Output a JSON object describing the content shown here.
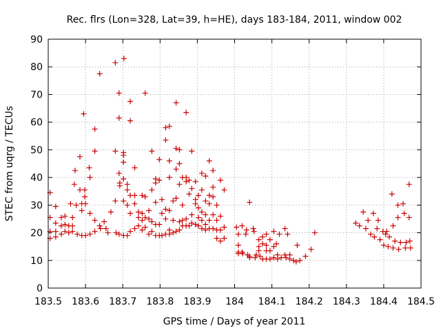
{
  "chart_data": {
    "type": "scatter",
    "title": "Rec. flrs (Lon=328, Lat=39, h=HE), days 183-184, 2011, window 002",
    "xlabel": "GPS time / Days of year 2011",
    "ylabel": "STEC from uqrg / TECUs",
    "xlim": [
      183.5,
      184.5
    ],
    "ylim": [
      0,
      90
    ],
    "x_ticks": [
      "183.5",
      "183.6",
      "183.7",
      "183.8",
      "183.9",
      "184",
      "184.1",
      "184.2",
      "184.3",
      "184.4",
      "184.5"
    ],
    "y_ticks": [
      "0",
      "10",
      "20",
      "30",
      "40",
      "50",
      "60",
      "70",
      "80",
      "90"
    ],
    "grid": true,
    "marker": "+",
    "colors": {
      "points": "#cc0000",
      "grid": "#a0a0a0",
      "axes": "#000000"
    },
    "series": [
      {
        "points": [
          [
            183.505,
            34.5
          ],
          [
            183.505,
            25.5
          ],
          [
            183.505,
            20.5
          ],
          [
            183.505,
            18.0
          ],
          [
            183.52,
            29.5
          ],
          [
            183.52,
            23.5
          ],
          [
            183.52,
            20.5
          ],
          [
            183.52,
            18.5
          ],
          [
            183.535,
            25.5
          ],
          [
            183.535,
            22.5
          ],
          [
            183.535,
            19.5
          ],
          [
            183.545,
            26.0
          ],
          [
            183.545,
            23.0
          ],
          [
            183.545,
            20.5
          ],
          [
            183.555,
            22.5
          ],
          [
            183.555,
            20.0
          ],
          [
            183.56,
            30.5
          ],
          [
            183.565,
            25.5
          ],
          [
            183.565,
            22.5
          ],
          [
            183.565,
            20.5
          ],
          [
            183.57,
            37.5
          ],
          [
            183.572,
            42.5
          ],
          [
            183.575,
            30.0
          ],
          [
            183.578,
            19.5
          ],
          [
            183.585,
            47.5
          ],
          [
            183.585,
            35.5
          ],
          [
            183.59,
            30.5
          ],
          [
            183.59,
            28.0
          ],
          [
            183.59,
            19.0
          ],
          [
            183.595,
            63.0
          ],
          [
            183.598,
            35.5
          ],
          [
            183.598,
            33.0
          ],
          [
            183.6,
            30.5
          ],
          [
            183.6,
            19.0
          ],
          [
            183.61,
            43.5
          ],
          [
            183.612,
            40.0
          ],
          [
            183.612,
            27.0
          ],
          [
            183.612,
            19.5
          ],
          [
            183.625,
            57.5
          ],
          [
            183.625,
            49.5
          ],
          [
            183.625,
            24.5
          ],
          [
            183.625,
            20.5
          ],
          [
            183.638,
            77.5
          ],
          [
            183.638,
            22.5
          ],
          [
            183.64,
            21.5
          ],
          [
            183.65,
            24.0
          ],
          [
            183.655,
            21.5
          ],
          [
            183.66,
            20.0
          ],
          [
            183.668,
            27.5
          ],
          [
            183.68,
            81.5
          ],
          [
            183.68,
            49.5
          ],
          [
            183.68,
            31.5
          ],
          [
            183.682,
            20.0
          ],
          [
            183.69,
            70.5
          ],
          [
            183.69,
            61.5
          ],
          [
            183.69,
            41.5
          ],
          [
            183.692,
            38.0
          ],
          [
            183.692,
            37.0
          ],
          [
            183.69,
            19.5
          ],
          [
            183.703,
            83.0
          ],
          [
            183.702,
            49.0
          ],
          [
            183.702,
            48.0
          ],
          [
            183.702,
            45.5
          ],
          [
            183.702,
            39.5
          ],
          [
            183.702,
            31.5
          ],
          [
            183.702,
            19.0
          ],
          [
            183.712,
            37.5
          ],
          [
            183.712,
            35.5
          ],
          [
            183.712,
            30.0
          ],
          [
            183.712,
            19.0
          ],
          [
            183.72,
            67.5
          ],
          [
            183.72,
            60.5
          ],
          [
            183.72,
            33.5
          ],
          [
            183.72,
            27.0
          ],
          [
            183.72,
            20.5
          ],
          [
            183.732,
            43.5
          ],
          [
            183.732,
            33.5
          ],
          [
            183.732,
            30.5
          ],
          [
            183.732,
            21.5
          ],
          [
            183.742,
            27.5
          ],
          [
            183.742,
            25.5
          ],
          [
            183.742,
            22.5
          ],
          [
            183.752,
            33.5
          ],
          [
            183.752,
            27.0
          ],
          [
            183.752,
            24.5
          ],
          [
            183.752,
            21.0
          ],
          [
            183.76,
            70.5
          ],
          [
            183.76,
            33.0
          ],
          [
            183.76,
            25.5
          ],
          [
            183.76,
            22.0
          ],
          [
            183.77,
            28.0
          ],
          [
            183.77,
            25.0
          ],
          [
            183.77,
            19.5
          ],
          [
            183.778,
            49.5
          ],
          [
            183.778,
            35.5
          ],
          [
            183.778,
            24.0
          ],
          [
            183.778,
            20.5
          ],
          [
            183.788,
            39.5
          ],
          [
            183.788,
            38.0
          ],
          [
            183.788,
            31.0
          ],
          [
            183.788,
            23.0
          ],
          [
            183.788,
            19.0
          ],
          [
            183.798,
            46.5
          ],
          [
            183.798,
            39.0
          ],
          [
            183.798,
            23.0
          ],
          [
            183.798,
            19.0
          ],
          [
            183.805,
            32.0
          ],
          [
            183.805,
            27.0
          ],
          [
            183.805,
            19.0
          ],
          [
            183.815,
            58.0
          ],
          [
            183.815,
            53.5
          ],
          [
            183.815,
            28.5
          ],
          [
            183.815,
            25.0
          ],
          [
            183.815,
            19.5
          ],
          [
            183.825,
            58.5
          ],
          [
            183.825,
            46.0
          ],
          [
            183.825,
            40.0
          ],
          [
            183.825,
            28.0
          ],
          [
            183.825,
            21.0
          ],
          [
            183.825,
            19.5
          ],
          [
            183.835,
            31.5
          ],
          [
            183.835,
            24.5
          ],
          [
            183.835,
            20.0
          ],
          [
            183.843,
            67.0
          ],
          [
            183.843,
            50.5
          ],
          [
            183.843,
            43.0
          ],
          [
            183.843,
            32.5
          ],
          [
            183.843,
            20.5
          ],
          [
            183.852,
            50.0
          ],
          [
            183.852,
            45.0
          ],
          [
            183.852,
            37.5
          ],
          [
            183.852,
            24.0
          ],
          [
            183.852,
            21.0
          ],
          [
            183.86,
            40.0
          ],
          [
            183.86,
            30.0
          ],
          [
            183.86,
            24.5
          ],
          [
            183.86,
            22.5
          ],
          [
            183.87,
            63.5
          ],
          [
            183.87,
            40.0
          ],
          [
            183.87,
            38.5
          ],
          [
            183.87,
            25.0
          ],
          [
            183.87,
            22.5
          ],
          [
            183.878,
            39.0
          ],
          [
            183.878,
            34.0
          ],
          [
            183.878,
            22.5
          ],
          [
            183.885,
            49.5
          ],
          [
            183.885,
            36.0
          ],
          [
            183.885,
            26.5
          ],
          [
            183.885,
            23.5
          ],
          [
            183.895,
            38.5
          ],
          [
            183.895,
            32.0
          ],
          [
            183.895,
            30.5
          ],
          [
            183.895,
            23.0
          ],
          [
            183.903,
            33.5
          ],
          [
            183.903,
            29.0
          ],
          [
            183.903,
            25.5
          ],
          [
            183.903,
            22.5
          ],
          [
            183.912,
            41.5
          ],
          [
            183.912,
            35.5
          ],
          [
            183.912,
            27.5
          ],
          [
            183.912,
            24.5
          ],
          [
            183.912,
            21.5
          ],
          [
            183.922,
            40.5
          ],
          [
            183.922,
            31.5
          ],
          [
            183.922,
            26.5
          ],
          [
            183.922,
            23.0
          ],
          [
            183.922,
            21.0
          ],
          [
            183.932,
            46.0
          ],
          [
            183.932,
            33.5
          ],
          [
            183.932,
            30.5
          ],
          [
            183.932,
            24.5
          ],
          [
            183.932,
            21.5
          ],
          [
            183.942,
            42.5
          ],
          [
            183.942,
            36.5
          ],
          [
            183.942,
            33.0
          ],
          [
            183.942,
            26.5
          ],
          [
            183.942,
            21.5
          ],
          [
            183.952,
            30.0
          ],
          [
            183.952,
            24.5
          ],
          [
            183.952,
            21.0
          ],
          [
            183.952,
            18.0
          ],
          [
            183.962,
            39.0
          ],
          [
            183.962,
            26.0
          ],
          [
            183.962,
            21.0
          ],
          [
            183.962,
            17.0
          ],
          [
            183.972,
            35.5
          ],
          [
            183.972,
            22.0
          ],
          [
            183.972,
            18.0
          ],
          [
            184.005,
            22.0
          ],
          [
            184.01,
            19.5
          ],
          [
            184.01,
            15.5
          ],
          [
            184.01,
            13.0
          ],
          [
            184.01,
            12.5
          ],
          [
            184.02,
            22.5
          ],
          [
            184.02,
            13.0
          ],
          [
            184.022,
            12.5
          ],
          [
            184.03,
            19.5
          ],
          [
            184.032,
            21.0
          ],
          [
            184.035,
            12.0
          ],
          [
            184.04,
            31.0
          ],
          [
            184.04,
            11.5
          ],
          [
            184.04,
            11.0
          ],
          [
            184.05,
            21.5
          ],
          [
            184.052,
            20.5
          ],
          [
            184.055,
            11.0
          ],
          [
            184.058,
            12.0
          ],
          [
            184.065,
            17.5
          ],
          [
            184.065,
            15.0
          ],
          [
            184.065,
            13.5
          ],
          [
            184.068,
            11.5
          ],
          [
            184.075,
            18.5
          ],
          [
            184.075,
            16.0
          ],
          [
            184.075,
            10.5
          ],
          [
            184.085,
            19.5
          ],
          [
            184.085,
            15.5
          ],
          [
            184.085,
            13.5
          ],
          [
            184.085,
            10.5
          ],
          [
            184.095,
            17.5
          ],
          [
            184.095,
            13.5
          ],
          [
            184.095,
            10.5
          ],
          [
            184.105,
            20.5
          ],
          [
            184.105,
            15.0
          ],
          [
            184.105,
            11.0
          ],
          [
            184.112,
            16.0
          ],
          [
            184.115,
            12.0
          ],
          [
            184.115,
            10.5
          ],
          [
            184.12,
            19.5
          ],
          [
            184.125,
            11.0
          ],
          [
            184.135,
            21.5
          ],
          [
            184.135,
            12.0
          ],
          [
            184.138,
            11.0
          ],
          [
            184.142,
            19.5
          ],
          [
            184.148,
            12.0
          ],
          [
            184.148,
            10.5
          ],
          [
            184.158,
            10.0
          ],
          [
            184.165,
            9.5
          ],
          [
            184.168,
            15.5
          ],
          [
            184.175,
            10.0
          ],
          [
            184.19,
            11.5
          ],
          [
            184.205,
            14.0
          ],
          [
            184.215,
            20.0
          ],
          [
            184.325,
            23.5
          ],
          [
            184.335,
            22.5
          ],
          [
            184.345,
            27.5
          ],
          [
            184.352,
            21.5
          ],
          [
            184.358,
            24.5
          ],
          [
            184.365,
            19.5
          ],
          [
            184.372,
            27.0
          ],
          [
            184.375,
            18.5
          ],
          [
            184.382,
            21.5
          ],
          [
            184.385,
            24.5
          ],
          [
            184.39,
            17.5
          ],
          [
            184.398,
            20.5
          ],
          [
            184.4,
            15.5
          ],
          [
            184.405,
            19.5
          ],
          [
            184.408,
            20.5
          ],
          [
            184.412,
            15.0
          ],
          [
            184.415,
            18.5
          ],
          [
            184.422,
            34.0
          ],
          [
            184.425,
            22.5
          ],
          [
            184.425,
            14.5
          ],
          [
            184.43,
            17.0
          ],
          [
            184.438,
            30.0
          ],
          [
            184.438,
            25.5
          ],
          [
            184.44,
            14.0
          ],
          [
            184.445,
            16.5
          ],
          [
            184.452,
            30.5
          ],
          [
            184.455,
            27.0
          ],
          [
            184.458,
            14.5
          ],
          [
            184.46,
            16.5
          ],
          [
            184.468,
            37.5
          ],
          [
            184.468,
            25.5
          ],
          [
            184.47,
            17.0
          ],
          [
            184.472,
            14.5
          ]
        ]
      }
    ]
  }
}
